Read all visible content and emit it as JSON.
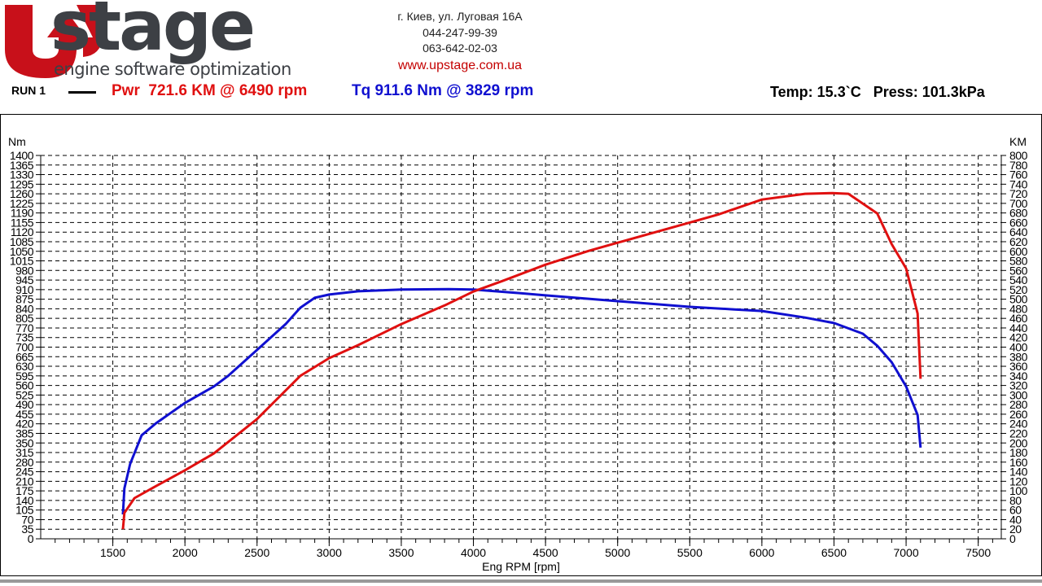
{
  "header": {
    "logo_word": "stage",
    "logo_letter": "U",
    "logo_tagline": "engine software optimization",
    "address": "г. Киев, ул. Луговая 16А",
    "phone1": "044-247-99-39",
    "phone2": "063-642-02-03",
    "website": "www.upstage.com.ua",
    "run_label": "RUN 1",
    "power_summary": "Pwr  721.6 KM @ 6490 rpm",
    "torque_summary": "Tq 911.6 Nm @ 3829 rpm",
    "conditions": "Temp: 15.3`C   Press: 101.3kPa"
  },
  "colors": {
    "power": "#e01010",
    "torque": "#1010d0",
    "logo_red": "#c8101a",
    "logo_gray": "#3d4045"
  },
  "chart_data": {
    "type": "line",
    "xlabel": "Eng RPM [rpm]",
    "ylabel_left": "Nm",
    "ylabel_right": "KM",
    "xlim": [
      1000,
      7660
    ],
    "ylim_left": [
      0,
      1400
    ],
    "ylim_right": [
      0,
      800
    ],
    "x_ticks": [
      1500,
      2000,
      2500,
      3000,
      3500,
      4000,
      4500,
      5000,
      5500,
      6000,
      6500,
      7000,
      7500
    ],
    "y_left_step": 35,
    "y_right_step": 20,
    "grid": true,
    "series": [
      {
        "name": "Tq",
        "axis": "left",
        "color": "#1010d0",
        "x": [
          1570,
          1580,
          1620,
          1700,
          1800,
          2000,
          2200,
          2300,
          2500,
          2700,
          2800,
          2900,
          3000,
          3200,
          3500,
          3829,
          4000,
          4300,
          4500,
          5000,
          5500,
          5800,
          6000,
          6300,
          6500,
          6700,
          6800,
          6900,
          7000,
          7080,
          7100
        ],
        "y": [
          89,
          184,
          273,
          378,
          422,
          496,
          556,
          595,
          690,
          785,
          844,
          880,
          892,
          904,
          910,
          911.6,
          910,
          898,
          889,
          868,
          847,
          838,
          832,
          808,
          788,
          749,
          705,
          645,
          556,
          452,
          333
        ]
      },
      {
        "name": "Pwr",
        "axis": "right",
        "color": "#e01010",
        "x": [
          1570,
          1580,
          1650,
          1800,
          2000,
          2200,
          2500,
          2800,
          3000,
          3200,
          3500,
          3800,
          4000,
          4200,
          4500,
          4800,
          5000,
          5500,
          5700,
          6000,
          6300,
          6490,
          6600,
          6800,
          6900,
          7000,
          7080,
          7100
        ],
        "y": [
          20,
          54,
          85,
          110,
          143,
          178,
          250,
          340,
          377,
          404,
          448,
          487,
          516,
          538,
          572,
          601,
          618,
          660,
          677,
          708,
          720,
          721.6,
          720,
          679,
          615,
          564,
          470,
          334
        ]
      }
    ]
  }
}
